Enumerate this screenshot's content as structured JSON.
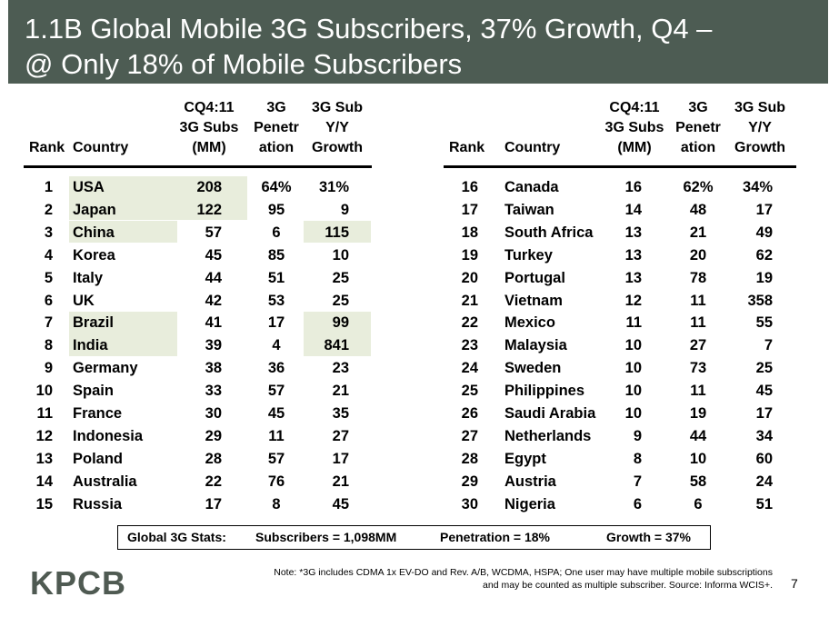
{
  "title": {
    "line1": "1.1B Global Mobile 3G Subscribers, 37% Growth, Q4 –",
    "line2": "@ Only 18% of Mobile Subscribers"
  },
  "headers": {
    "rank": "Rank",
    "country": "Country",
    "subs": "CQ4:11\n3G Subs\n(MM)",
    "penetration": "3G\nPenetr\nation",
    "growth": "3G Sub\nY/Y\nGrowth"
  },
  "rows_left": [
    {
      "rank": "1",
      "country": "USA",
      "subs": "208",
      "pen": "64%",
      "growth": "31%"
    },
    {
      "rank": "2",
      "country": "Japan",
      "subs": "122",
      "pen": "95",
      "growth": "9"
    },
    {
      "rank": "3",
      "country": "China",
      "subs": "57",
      "pen": "6",
      "growth": "115"
    },
    {
      "rank": "4",
      "country": "Korea",
      "subs": "45",
      "pen": "85",
      "growth": "10"
    },
    {
      "rank": "5",
      "country": "Italy",
      "subs": "44",
      "pen": "51",
      "growth": "25"
    },
    {
      "rank": "6",
      "country": "UK",
      "subs": "42",
      "pen": "53",
      "growth": "25"
    },
    {
      "rank": "7",
      "country": "Brazil",
      "subs": "41",
      "pen": "17",
      "growth": "99"
    },
    {
      "rank": "8",
      "country": "India",
      "subs": "39",
      "pen": "4",
      "growth": "841"
    },
    {
      "rank": "9",
      "country": "Germany",
      "subs": "38",
      "pen": "36",
      "growth": "23"
    },
    {
      "rank": "10",
      "country": "Spain",
      "subs": "33",
      "pen": "57",
      "growth": "21"
    },
    {
      "rank": "11",
      "country": "France",
      "subs": "30",
      "pen": "45",
      "growth": "35"
    },
    {
      "rank": "12",
      "country": "Indonesia",
      "subs": "29",
      "pen": "11",
      "growth": "27"
    },
    {
      "rank": "13",
      "country": "Poland",
      "subs": "28",
      "pen": "57",
      "growth": "17"
    },
    {
      "rank": "14",
      "country": "Australia",
      "subs": "22",
      "pen": "76",
      "growth": "21"
    },
    {
      "rank": "15",
      "country": "Russia",
      "subs": "17",
      "pen": "8",
      "growth": "45"
    }
  ],
  "rows_right": [
    {
      "rank": "16",
      "country": "Canada",
      "subs": "16",
      "pen": "62%",
      "growth": "34%"
    },
    {
      "rank": "17",
      "country": "Taiwan",
      "subs": "14",
      "pen": "48",
      "growth": "17"
    },
    {
      "rank": "18",
      "country": "South Africa",
      "subs": "13",
      "pen": "21",
      "growth": "49"
    },
    {
      "rank": "19",
      "country": "Turkey",
      "subs": "13",
      "pen": "20",
      "growth": "62"
    },
    {
      "rank": "20",
      "country": "Portugal",
      "subs": "13",
      "pen": "78",
      "growth": "19"
    },
    {
      "rank": "21",
      "country": "Vietnam",
      "subs": "12",
      "pen": "11",
      "growth": "358"
    },
    {
      "rank": "22",
      "country": "Mexico",
      "subs": "11",
      "pen": "11",
      "growth": "55"
    },
    {
      "rank": "23",
      "country": "Malaysia",
      "subs": "10",
      "pen": "27",
      "growth": "7"
    },
    {
      "rank": "24",
      "country": "Sweden",
      "subs": "10",
      "pen": "73",
      "growth": "25"
    },
    {
      "rank": "25",
      "country": "Philippines",
      "subs": "10",
      "pen": "11",
      "growth": "45"
    },
    {
      "rank": "26",
      "country": "Saudi Arabia",
      "subs": "10",
      "pen": "19",
      "growth": "17"
    },
    {
      "rank": "27",
      "country": "Netherlands",
      "subs": "9",
      "pen": "44",
      "growth": "34"
    },
    {
      "rank": "28",
      "country": "Egypt",
      "subs": "8",
      "pen": "10",
      "growth": "60"
    },
    {
      "rank": "29",
      "country": "Austria",
      "subs": "7",
      "pen": "58",
      "growth": "24"
    },
    {
      "rank": "30",
      "country": "Nigeria",
      "subs": "6",
      "pen": "6",
      "growth": "51"
    }
  ],
  "stats": {
    "label": "Global 3G Stats:",
    "subscribers": "Subscribers = 1,098MM",
    "penetration": "Penetration = 18%",
    "growth": "Growth = 37%"
  },
  "footer": {
    "logo": "KPCB",
    "note": "Note: *3G includes CDMA 1x EV-DO and Rev. A/B, WCDMA, HSPA; One user may have multiple mobile subscriptions and may be counted as multiple subscriber.  Source: Informa WCIS+.",
    "page": "7"
  },
  "colors": {
    "title_bg": "#4d5c53",
    "highlight": "#e8eddc",
    "logo": "#4f5a52"
  }
}
